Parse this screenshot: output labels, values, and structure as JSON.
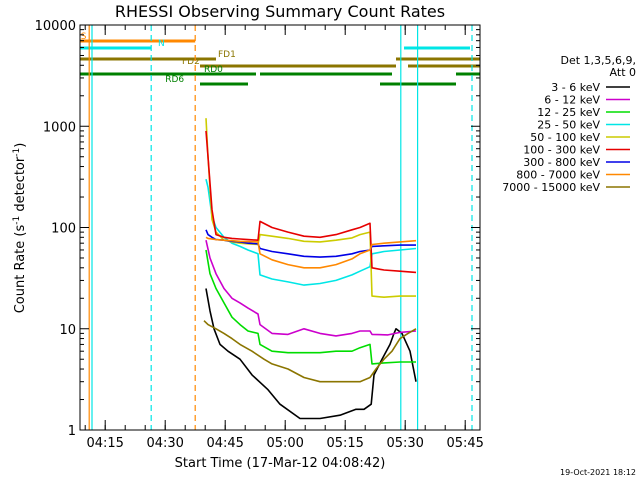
{
  "chart_data": {
    "type": "line",
    "title": "RHESSI Observing Summary Count Rates",
    "xlabel": "Start Time (17-Mar-12 04:08:42)",
    "ylabel_prefix": "Count Rate (s",
    "ylabel_sup": "-1",
    "ylabel_middle": " detector",
    "ylabel_suffix": ")",
    "yscale": "log",
    "ylim": [
      1,
      10000
    ],
    "xlim_min": [
      0,
      100
    ],
    "yticks": [
      {
        "value": 1,
        "label": "1"
      },
      {
        "value": 10,
        "label": "10"
      },
      {
        "value": 100,
        "label": "100"
      },
      {
        "value": 1000,
        "label": "1000"
      },
      {
        "value": 10000,
        "label": "10000"
      }
    ],
    "xticks": [
      {
        "min": 6.3,
        "label": "04:15"
      },
      {
        "min": 21.3,
        "label": "04:30"
      },
      {
        "min": 36.3,
        "label": "04:45"
      },
      {
        "min": 51.3,
        "label": "05:00"
      },
      {
        "min": 66.3,
        "label": "05:15"
      },
      {
        "min": 81.3,
        "label": "05:30"
      },
      {
        "min": 96.3,
        "label": "05:45"
      }
    ],
    "legend_title": [
      "Det 1,3,5,6,9,",
      "Att 0"
    ],
    "series": [
      {
        "name": "3 - 6 keV",
        "color": "#000000",
        "x": [
          31.5,
          32.5,
          33.5,
          35,
          37,
          40,
          43,
          47,
          50,
          55,
          60,
          65,
          69,
          71,
          72.8,
          73.5,
          75.5,
          77.5,
          78.5,
          79,
          80.5,
          82.5,
          84
        ],
        "y": [
          25,
          15,
          10,
          7,
          6,
          5,
          3.5,
          2.5,
          1.8,
          1.3,
          1.3,
          1.4,
          1.6,
          1.6,
          1.8,
          3.5,
          5,
          7,
          9,
          10,
          9,
          6,
          3
        ]
      },
      {
        "name": "6 - 12 keV",
        "color": "#cc00cc",
        "x": [
          31.5,
          32.5,
          34,
          36,
          38,
          40,
          42,
          44.5,
          45,
          48,
          52,
          56,
          60,
          64,
          68,
          70,
          72.5,
          73,
          77,
          80,
          84
        ],
        "y": [
          75,
          50,
          35,
          25,
          20,
          18,
          16,
          14,
          11,
          9,
          8.8,
          10,
          9,
          8.5,
          9,
          9.5,
          9.5,
          8.8,
          8.7,
          9.2,
          9.5
        ]
      },
      {
        "name": "12 - 25 keV",
        "color": "#00dd00",
        "x": [
          31.5,
          32.5,
          34,
          36,
          38,
          40,
          42,
          44.5,
          45,
          48,
          52,
          56,
          60,
          64,
          68,
          70,
          72.5,
          73,
          76,
          80,
          84
        ],
        "y": [
          60,
          35,
          25,
          18,
          13,
          11,
          9.5,
          9,
          7,
          6,
          5.8,
          5.8,
          5.8,
          6,
          6,
          6.5,
          7,
          4.5,
          4.6,
          4.7,
          4.7
        ]
      },
      {
        "name": "25 - 50 keV",
        "color": "#00e6e6",
        "x": [
          31.5,
          32,
          33,
          34,
          36,
          38,
          40,
          42,
          44.5,
          45,
          48,
          52,
          56,
          60,
          64,
          68,
          70,
          72.5,
          73,
          76,
          80,
          84
        ],
        "y": [
          300,
          250,
          130,
          100,
          80,
          70,
          65,
          60,
          55,
          34,
          31,
          29,
          27,
          28,
          30,
          34,
          37,
          41,
          55,
          58,
          60,
          62
        ]
      },
      {
        "name": "50 - 100 keV",
        "color": "#cccc00",
        "x": [
          31.5,
          32,
          33,
          34,
          36,
          38,
          40,
          42,
          44.5,
          45,
          48,
          52,
          56,
          60,
          64,
          68,
          70,
          72.5,
          73,
          76,
          80,
          84
        ],
        "y": [
          1200,
          500,
          120,
          90,
          75,
          72,
          70,
          69,
          68,
          85,
          82,
          78,
          73,
          72,
          75,
          79,
          85,
          90,
          21,
          20.5,
          21,
          21
        ]
      },
      {
        "name": "100 - 300 keV",
        "color": "#e60000",
        "x": [
          31.5,
          32,
          33,
          34,
          36,
          38,
          40,
          42,
          44.5,
          45,
          48,
          52,
          56,
          60,
          64,
          68,
          70,
          72.5,
          73,
          76,
          80,
          84
        ],
        "y": [
          900,
          500,
          150,
          85,
          80,
          78,
          77,
          76,
          75,
          115,
          100,
          90,
          82,
          80,
          85,
          95,
          100,
          110,
          40,
          38,
          37,
          36
        ]
      },
      {
        "name": "300 - 800 keV",
        "color": "#0000e6",
        "x": [
          31.5,
          32,
          33,
          34,
          36,
          38,
          40,
          42,
          44.5,
          45,
          48,
          52,
          56,
          60,
          64,
          68,
          70,
          72.5,
          73,
          76,
          80,
          84
        ],
        "y": [
          95,
          85,
          80,
          76,
          75,
          73,
          72,
          70,
          69,
          62,
          58,
          55,
          52,
          51,
          52,
          55,
          58,
          60,
          65,
          66,
          67,
          67
        ]
      },
      {
        "name": "800 - 7000 keV",
        "color": "#ff8800",
        "x": [
          31.5,
          32,
          34,
          36,
          38,
          40,
          44.5,
          45,
          48,
          52,
          56,
          60,
          64,
          68,
          70,
          72.5,
          73,
          76,
          80,
          84
        ],
        "y": [
          80,
          78,
          76,
          75,
          74,
          73,
          72,
          55,
          48,
          43,
          40,
          40,
          43,
          49,
          55,
          60,
          68,
          70,
          72,
          74
        ]
      },
      {
        "name": "7000 - 15000 keV",
        "color": "#8b7500",
        "x": [
          31,
          32,
          34,
          36,
          38,
          40,
          43,
          46,
          48,
          52,
          56,
          60,
          64,
          68,
          70,
          72.5,
          74,
          76,
          78,
          80,
          82,
          84
        ],
        "y": [
          12,
          11,
          10,
          9,
          8,
          7,
          6,
          5,
          4.5,
          4,
          3.3,
          3,
          3,
          3,
          3,
          3.3,
          4,
          5,
          6,
          8,
          9,
          10
        ]
      }
    ],
    "vlines": [
      {
        "min": 2.3,
        "color": "#ff8800",
        "dash": false
      },
      {
        "min": 3.0,
        "color": "#00e6e6",
        "dash": false
      },
      {
        "min": 17.8,
        "color": "#00e6e6",
        "dash": true
      },
      {
        "min": 28.8,
        "color": "#ff8800",
        "dash": true
      },
      {
        "min": 80.2,
        "color": "#00e6e6",
        "dash": false
      },
      {
        "min": 84.4,
        "color": "#00e6e6",
        "dash": false
      },
      {
        "min": 98.0,
        "color": "#00e6e6",
        "dash": true
      }
    ],
    "flag_bars": [
      {
        "label": "S",
        "color": "#ff8800",
        "y": 41,
        "segments": [
          [
            0,
            28.8
          ]
        ],
        "label_min": 0.2
      },
      {
        "label": "N",
        "color": "#00e6e6",
        "y": 48,
        "segments": [
          [
            0,
            17.8
          ],
          [
            81,
            97.5
          ]
        ],
        "label_min": 19.5
      },
      {
        "label": "FD1",
        "color": "#8b7500",
        "y": 59,
        "segments": [
          [
            0,
            34
          ],
          [
            79,
            100
          ]
        ],
        "label_min": 34.5
      },
      {
        "label": "FD2",
        "color": "#8b7500",
        "y": 66,
        "segments": [
          [
            30,
            79
          ],
          [
            82,
            100
          ]
        ],
        "label_min": 25.5
      },
      {
        "label": "RD0",
        "color": "#008000",
        "y": 74,
        "segments": [
          [
            0,
            44
          ],
          [
            45,
            78
          ],
          [
            94,
            100
          ]
        ],
        "label_min": 31
      },
      {
        "label": "RD6",
        "color": "#008000",
        "y": 84,
        "segments": [
          [
            30,
            42
          ],
          [
            75,
            94
          ]
        ],
        "label_min": 21.3
      }
    ],
    "timestamp": "19-Oct-2021 18:12",
    "grid": false,
    "legend_position": "right"
  }
}
